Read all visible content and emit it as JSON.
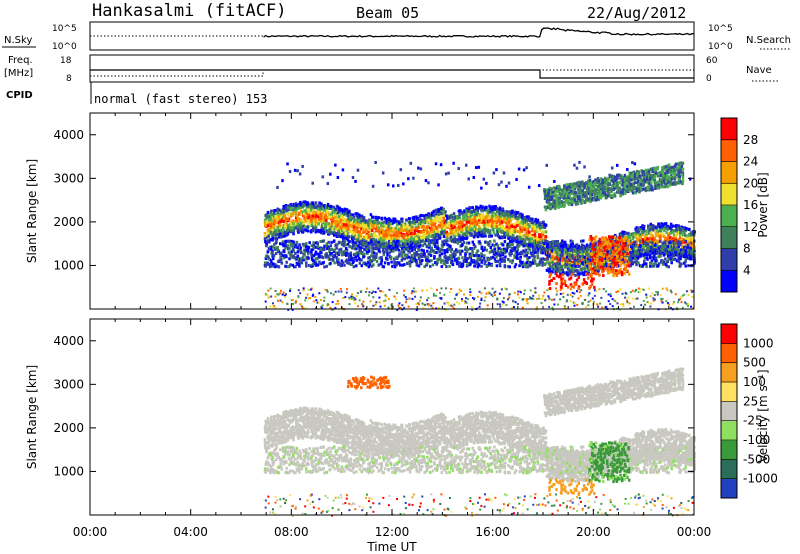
{
  "header": {
    "station": "Hankasalmi (fitACF)",
    "beam": "Beam 05",
    "date": "22/Aug/2012"
  },
  "noise_panel": {
    "left_label": "N.Sky",
    "right_label": "N.Search",
    "left_ticks": [
      "10^5",
      "10^0"
    ],
    "right_ticks": [
      "10^5",
      "10^0"
    ]
  },
  "freq_panel": {
    "left_label_1": "Freq.",
    "left_label_2": "[MHz]",
    "left_ticks": [
      "18",
      "8"
    ],
    "right_label": "Nave",
    "right_ticks": [
      "60",
      "0"
    ],
    "cpid_label": "CPID",
    "cpid_text": "normal (fast stereo) 153"
  },
  "chart_data": [
    {
      "type": "heatmap",
      "name": "power",
      "ylabel": "Slant Range [km]",
      "yticks": [
        "1000",
        "2000",
        "3000",
        "4000"
      ],
      "ylim": [
        0,
        4500
      ],
      "xlabel": "Time UT",
      "xticks": [
        "00:00",
        "04:00",
        "08:00",
        "12:00",
        "16:00",
        "20:00",
        "00:00"
      ],
      "xlim_hours": [
        0,
        24
      ],
      "colorbar": {
        "label": "Power [dB]",
        "ticks": [
          "4",
          "8",
          "12",
          "16",
          "20",
          "24",
          "28"
        ],
        "colors": [
          "#0000ff",
          "#2f3ea8",
          "#3f7f5a",
          "#4caf50",
          "#f0e030",
          "#f5a000",
          "#ff6000",
          "#ff0000"
        ]
      },
      "data_start_hour": 6.9
    },
    {
      "type": "heatmap",
      "name": "velocity",
      "ylabel": "Slant Range [km]",
      "yticks": [
        "1000",
        "2000",
        "3000",
        "4000"
      ],
      "ylim": [
        0,
        4500
      ],
      "xlabel": "Time UT",
      "xticks": [
        "00:00",
        "04:00",
        "08:00",
        "12:00",
        "16:00",
        "20:00",
        "00:00"
      ],
      "xlim_hours": [
        0,
        24
      ],
      "colorbar": {
        "label": "Velocity [m s⁻¹]",
        "ticks": [
          "1000",
          "500",
          "100",
          "25",
          "-25",
          "-100",
          "-500",
          "-1000"
        ],
        "colors": [
          "#2040c0",
          "#2a6e5a",
          "#3a9a3a",
          "#90e060",
          "#c8c8c0",
          "#ffe060",
          "#f5a020",
          "#ff6000",
          "#ff0000"
        ]
      },
      "data_start_hour": 6.9
    }
  ],
  "xaxis_label": "Time UT"
}
